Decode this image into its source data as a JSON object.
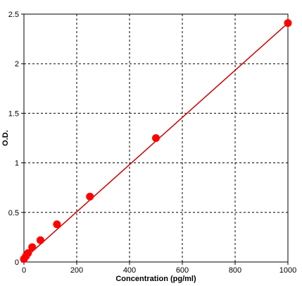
{
  "chart_data": {
    "type": "scatter",
    "title": "",
    "xlabel": "Concentration (pg/ml)",
    "ylabel": "O.D.",
    "xlim": [
      0,
      1000
    ],
    "ylim": [
      0,
      2.5
    ],
    "x_ticks": [
      0,
      200,
      400,
      600,
      800,
      1000
    ],
    "x_tick_labels": [
      "0",
      "200",
      "400",
      "600",
      "800",
      "1000"
    ],
    "y_ticks": [
      0,
      0.5,
      1,
      1.5,
      2,
      2.5
    ],
    "y_tick_labels": [
      "0",
      "0.5",
      "1",
      "1.5",
      "2",
      "2.5"
    ],
    "grid": true,
    "grid_style": "dashed",
    "series": [
      {
        "x": [
          0,
          7.8,
          15.6,
          31.25,
          62.5,
          125,
          250,
          500,
          1000
        ],
        "y": [
          0.03,
          0.06,
          0.09,
          0.15,
          0.22,
          0.38,
          0.66,
          1.25,
          2.41
        ],
        "color": "#ff0000",
        "marker": "circle"
      }
    ],
    "fit_line": {
      "x": [
        0,
        1000
      ],
      "y": [
        0.03,
        2.41
      ],
      "color": "#cc0000"
    }
  }
}
